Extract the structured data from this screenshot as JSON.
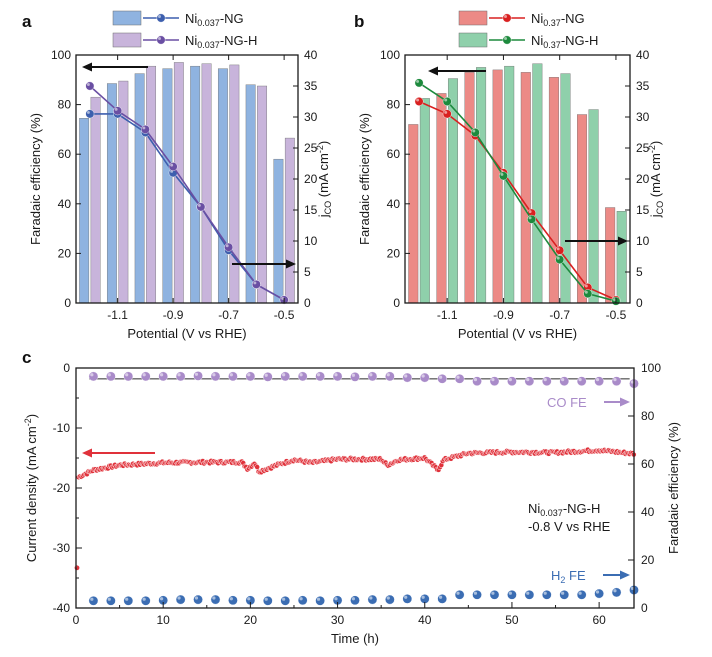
{
  "chart_data": [
    {
      "type": "bar+line",
      "panel_label": "a",
      "categories": [
        "-1.2",
        "-1.1",
        "-1.0",
        "-0.9",
        "-0.8",
        "-0.7",
        "-0.6",
        "-0.5"
      ],
      "xlabel": "Potential (V vs RHE)",
      "xticks": [
        "-1.1",
        "-0.9",
        "-0.7",
        "-0.5"
      ],
      "xlim": [
        -1.25,
        -0.45
      ],
      "ylabel_left": "Faradaic efficiency (%)",
      "ylim_left": [
        0,
        100
      ],
      "yticks_left": [
        "0",
        "20",
        "40",
        "60",
        "80",
        "100"
      ],
      "ylabel_right_main": "j",
      "ylabel_right_sub": "CO",
      "ylabel_right_unit": " (mA cm",
      "ylabel_right_exp": "-2",
      "ylabel_right_close": ")",
      "ylim_right": [
        0,
        40
      ],
      "yticks_right": [
        "0",
        "5",
        "10",
        "15",
        "20",
        "25",
        "30",
        "35",
        "40"
      ],
      "bar_series": [
        {
          "name": "Ni0.037-NG",
          "color": "#8fb3e0",
          "values": [
            74.5,
            88.5,
            92.5,
            94.5,
            95.5,
            94.5,
            88,
            58
          ]
        },
        {
          "name": "Ni0.037-NG-H",
          "color": "#c8b4db",
          "values": [
            83,
            89.5,
            95.5,
            97,
            96.5,
            96,
            87.5,
            66.5
          ]
        }
      ],
      "line_series": [
        {
          "name": "Ni0.037-NG",
          "color": "#3d5fae",
          "values": [
            30.5,
            30.5,
            27.5,
            21,
            15.5,
            8.5,
            3,
            0.5
          ]
        },
        {
          "name": "Ni0.037-NG-H",
          "color": "#6a4fa3",
          "values": [
            35,
            31,
            28,
            22,
            15.5,
            9,
            3,
            0.5
          ]
        }
      ],
      "legend": [
        {
          "base": "Ni",
          "sub": "0.037",
          "tail": "-NG",
          "bar_color": "#8fb3e0",
          "line_color": "#3d5fae"
        },
        {
          "base": "Ni",
          "sub": "0.037",
          "tail": "-NG-H",
          "bar_color": "#c8b4db",
          "line_color": "#6a4fa3"
        }
      ]
    },
    {
      "type": "bar+line",
      "panel_label": "b",
      "categories": [
        "-1.2",
        "-1.1",
        "-1.0",
        "-0.9",
        "-0.8",
        "-0.7",
        "-0.6",
        "-0.5"
      ],
      "xlabel": "Potential (V vs RHE)",
      "xticks": [
        "-1.1",
        "-0.9",
        "-0.7",
        "-0.5"
      ],
      "xlim": [
        -1.25,
        -0.45
      ],
      "ylabel_left": "Faradaic efficiency (%)",
      "ylim_left": [
        0,
        100
      ],
      "yticks_left": [
        "0",
        "20",
        "40",
        "60",
        "80",
        "100"
      ],
      "ylabel_right_main": "j",
      "ylabel_right_sub": "CO",
      "ylabel_right_unit": " (mA cm",
      "ylabel_right_exp": "-2",
      "ylabel_right_close": ")",
      "ylim_right": [
        0,
        40
      ],
      "yticks_right": [
        "0",
        "5",
        "10",
        "15",
        "20",
        "25",
        "30",
        "35",
        "40"
      ],
      "bar_series": [
        {
          "name": "Ni0.37-NG",
          "color": "#ec8a86",
          "values": [
            72,
            84.5,
            93,
            94,
            93,
            91,
            76,
            38.5
          ]
        },
        {
          "name": "Ni0.37-NG-H",
          "color": "#8fd0ab",
          "values": [
            82.5,
            90.5,
            95,
            95.5,
            96.5,
            92.5,
            78,
            37
          ]
        }
      ],
      "line_series": [
        {
          "name": "Ni0.37-NG",
          "color": "#d92020",
          "values": [
            32.5,
            30.5,
            27,
            21,
            14.5,
            8.5,
            2.5,
            0.5
          ]
        },
        {
          "name": "Ni0.37-NG-H",
          "color": "#1d8a3d",
          "values": [
            35.5,
            32.5,
            27.5,
            20.5,
            13.5,
            7,
            1.5,
            0.3
          ]
        }
      ],
      "legend": [
        {
          "base": "Ni",
          "sub": "0.37",
          "tail": "-NG",
          "bar_color": "#ec8a86",
          "line_color": "#d92020"
        },
        {
          "base": "Ni",
          "sub": "0.37",
          "tail": "-NG-H",
          "bar_color": "#8fd0ab",
          "line_color": "#1d8a3d"
        }
      ]
    },
    {
      "type": "scatter",
      "panel_label": "c",
      "xlabel": "Time (h)",
      "xlim": [
        0,
        64
      ],
      "xticks": [
        "0",
        "10",
        "20",
        "30",
        "40",
        "50",
        "60"
      ],
      "ylabel_left_main": "Current density (mA cm",
      "ylabel_left_exp": "-2",
      "ylabel_left_close": ")",
      "ylim_left": [
        -40,
        0
      ],
      "yticks_left": [
        "-40",
        "-30",
        "-20",
        "-10",
        "0"
      ],
      "ylabel_right": "Faradaic efficiency (%)",
      "ylim_right": [
        0,
        100
      ],
      "yticks_right": [
        "0",
        "20",
        "40",
        "60",
        "80",
        "100"
      ],
      "current_density": {
        "color": "#e0313a",
        "start_point": [
          0,
          -33.3
        ],
        "knots": [
          [
            0.3,
            -18.2
          ],
          [
            2,
            -17
          ],
          [
            5,
            -16.2
          ],
          [
            10,
            -15.8
          ],
          [
            15,
            -15.7
          ],
          [
            19,
            -15.7
          ],
          [
            19.7,
            -16.8
          ],
          [
            20.5,
            -15.8
          ],
          [
            21,
            -17.3
          ],
          [
            23,
            -16.2
          ],
          [
            25,
            -15.3
          ],
          [
            27,
            -15.8
          ],
          [
            30,
            -15.2
          ],
          [
            35,
            -15.2
          ],
          [
            35.7,
            -16.2
          ],
          [
            37,
            -15.3
          ],
          [
            40,
            -15
          ],
          [
            41,
            -16.3
          ],
          [
            41.5,
            -17
          ],
          [
            42.2,
            -15.3
          ],
          [
            45,
            -14.2
          ],
          [
            50,
            -14
          ],
          [
            55,
            -14.1
          ],
          [
            60,
            -13.7
          ],
          [
            64,
            -14.3
          ]
        ]
      },
      "co_fe": {
        "name": "CO FE",
        "color": "#a98bc9",
        "x": [
          2,
          4,
          6,
          8,
          10,
          12,
          14,
          16,
          18,
          20,
          22,
          24,
          26,
          28,
          30,
          32,
          34,
          36,
          38,
          40,
          42,
          44,
          46,
          48,
          50,
          52,
          54,
          56,
          58,
          60,
          62,
          64
        ],
        "y": [
          96.5,
          96.5,
          96.5,
          96.5,
          96.5,
          96.5,
          96.7,
          96.5,
          96.5,
          96.5,
          96.3,
          96.5,
          96.5,
          96.5,
          96.5,
          96.3,
          96.5,
          96.5,
          96.0,
          96.0,
          95.5,
          95.5,
          94.5,
          94.5,
          94.5,
          94.5,
          94.5,
          94.5,
          94.5,
          94.5,
          94.5,
          93.5
        ]
      },
      "co_fe_reference": 95.5,
      "h2_fe": {
        "name": "H2 FE",
        "color": "#3b6db3",
        "x": [
          2,
          4,
          6,
          8,
          10,
          12,
          14,
          16,
          18,
          20,
          22,
          24,
          26,
          28,
          30,
          32,
          34,
          36,
          38,
          40,
          42,
          44,
          46,
          48,
          50,
          52,
          54,
          56,
          58,
          60,
          62,
          64
        ],
        "y": [
          3,
          3,
          3,
          3,
          3.2,
          3.5,
          3.5,
          3.5,
          3.2,
          3.2,
          3,
          3,
          3.2,
          3,
          3.2,
          3.2,
          3.5,
          3.5,
          3.8,
          3.8,
          3.8,
          5.5,
          5.5,
          5.5,
          5.5,
          5.5,
          5.5,
          5.5,
          5.5,
          6,
          6.5,
          7.5
        ]
      },
      "annotation_sample_base": "Ni",
      "annotation_sample_sub": "0.037",
      "annotation_sample_tail": "-NG-H",
      "annotation_potential": "-0.8 V vs RHE",
      "label_co_fe": "CO FE",
      "label_h2_base": "H",
      "label_h2_sub": "2",
      "label_h2_tail": " FE"
    }
  ],
  "colors": {
    "axis": "#1a1a1a",
    "arrow": "#111111",
    "red_arrow": "#e0313a",
    "purple_arrow": "#a98bc9",
    "blue_arrow": "#3b6db3"
  }
}
